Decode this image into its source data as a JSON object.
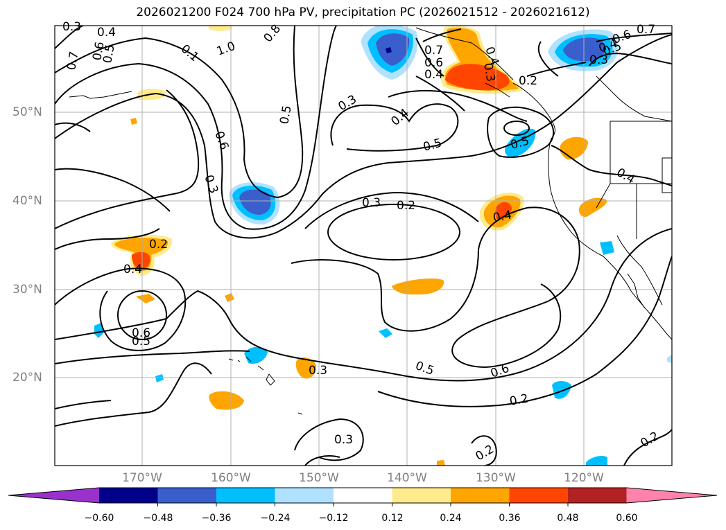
{
  "title": "2026021200 F024 700 hPa PV, precipitation PC (2026021512 - 2026021612)",
  "lat_labels": [
    "50°N",
    "40°N",
    "30°N",
    "20°N"
  ],
  "lon_labels": [
    "170°W",
    "160°W",
    "150°W",
    "140°W",
    "130°W",
    "120°W"
  ],
  "colorbar": {
    "ticks": [
      "−0.60",
      "−0.48",
      "−0.36",
      "−0.24",
      "−0.12",
      "0.12",
      "0.24",
      "0.36",
      "0.48",
      "0.60"
    ],
    "colors": [
      "#9932cc",
      "#00008b",
      "#3a5fcd",
      "#00bfff",
      "#b0e2ff",
      "#ffffff",
      "#ffeb8b",
      "#ffa500",
      "#ff4500",
      "#b22222",
      "#ff82ab"
    ]
  },
  "contour_labels": [
    "0.3",
    "0.4",
    "0.7",
    "0.6",
    "0.5",
    "0.1",
    "1.0",
    "0.8",
    "0.3",
    "0.6",
    "0.5",
    "0.3",
    "0.4",
    "0.5",
    "0.4",
    "0.7",
    "0.6",
    "0.4",
    "0.3",
    "0.2",
    "0.6",
    "0.5",
    "0.4",
    "0.7",
    "0.3",
    "0.5",
    "0.4",
    "0.3",
    "0.2",
    "0.4",
    "0.2",
    "0.4",
    "0.6",
    "0.5",
    "0.3",
    "0.5",
    "0.6",
    "0.2",
    "0.3",
    "0.2",
    "0.2"
  ]
}
